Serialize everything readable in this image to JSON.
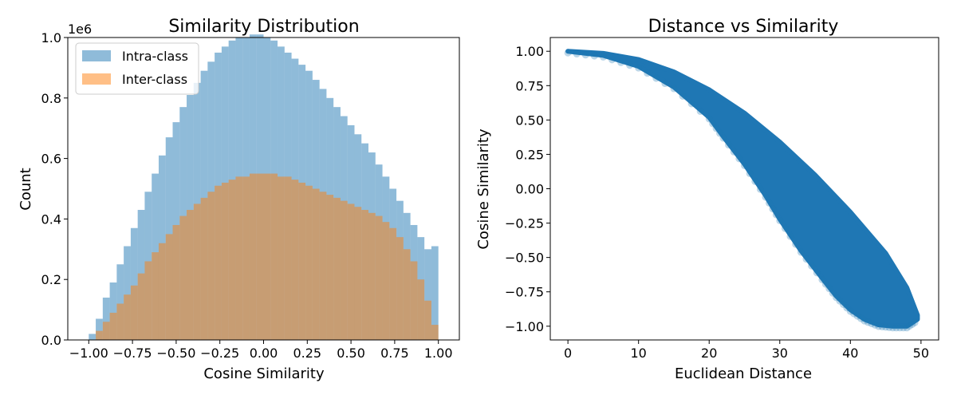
{
  "chart_data": [
    {
      "type": "histogram",
      "title": "Similarity Distribution",
      "xlabel": "Cosine Similarity",
      "ylabel": "Count",
      "y_offset_text": "1e6",
      "xlim": [
        -1.12,
        1.12
      ],
      "ylim": [
        0,
        1.0
      ],
      "xticks": [
        -1.0,
        -0.75,
        -0.5,
        -0.25,
        0.0,
        0.25,
        0.5,
        0.75,
        1.0
      ],
      "xtick_labels": [
        "−1.00",
        "−0.75",
        "−0.50",
        "−0.25",
        "0.00",
        "0.25",
        "0.50",
        "0.75",
        "1.00"
      ],
      "yticks": [
        0.0,
        0.2,
        0.4,
        0.6,
        0.8,
        1.0
      ],
      "ytick_labels": [
        "0.0",
        "0.2",
        "0.4",
        "0.6",
        "0.8",
        "1.0"
      ],
      "y_scale": 1000000,
      "bins": 50,
      "bin_range": [
        -1.0,
        1.0
      ],
      "legend_location": "upper left",
      "grid": false,
      "series": [
        {
          "name": "Intra-class",
          "color": "#1f77b4",
          "alpha": 0.5,
          "values": [
            0.02,
            0.07,
            0.14,
            0.19,
            0.25,
            0.31,
            0.37,
            0.43,
            0.49,
            0.55,
            0.61,
            0.67,
            0.72,
            0.77,
            0.81,
            0.85,
            0.89,
            0.92,
            0.95,
            0.97,
            0.99,
            1.0,
            1.0,
            1.01,
            1.01,
            1.0,
            0.99,
            0.97,
            0.95,
            0.93,
            0.91,
            0.89,
            0.86,
            0.83,
            0.8,
            0.77,
            0.74,
            0.71,
            0.68,
            0.65,
            0.62,
            0.58,
            0.54,
            0.5,
            0.46,
            0.42,
            0.38,
            0.34,
            0.3,
            0.31
          ]
        },
        {
          "name": "Inter-class",
          "color": "#ff7f0e",
          "alpha": 0.5,
          "values": [
            0.0,
            0.03,
            0.06,
            0.09,
            0.12,
            0.15,
            0.18,
            0.22,
            0.26,
            0.29,
            0.32,
            0.35,
            0.38,
            0.41,
            0.43,
            0.45,
            0.47,
            0.49,
            0.51,
            0.52,
            0.53,
            0.54,
            0.54,
            0.55,
            0.55,
            0.55,
            0.55,
            0.54,
            0.54,
            0.53,
            0.52,
            0.51,
            0.5,
            0.49,
            0.48,
            0.47,
            0.46,
            0.45,
            0.44,
            0.43,
            0.42,
            0.41,
            0.39,
            0.37,
            0.34,
            0.3,
            0.26,
            0.2,
            0.13,
            0.05
          ]
        }
      ]
    },
    {
      "type": "scatter",
      "title": "Distance vs Similarity",
      "xlabel": "Euclidean Distance",
      "ylabel": "Cosine Similarity",
      "xlim": [
        -2.5,
        52.5
      ],
      "ylim": [
        -1.1,
        1.1
      ],
      "xticks": [
        0,
        10,
        20,
        30,
        40,
        50
      ],
      "xtick_labels": [
        "0",
        "10",
        "20",
        "30",
        "40",
        "50"
      ],
      "yticks": [
        -1.0,
        -0.75,
        -0.5,
        -0.25,
        0.0,
        0.25,
        0.5,
        0.75,
        1.0
      ],
      "ytick_labels": [
        "−1.00",
        "−0.75",
        "−0.50",
        "−0.25",
        "0.00",
        "0.25",
        "0.50",
        "0.75",
        "1.00"
      ],
      "grid": false,
      "series": [
        {
          "color": "#1f77b4",
          "alpha": 0.3,
          "band_upper_edge": {
            "x": [
              0,
              5,
              10,
              15,
              20,
              25,
              30,
              35,
              40,
              45,
              48,
              49.5
            ],
            "y": [
              1.0,
              0.985,
              0.94,
              0.85,
              0.72,
              0.55,
              0.34,
              0.1,
              -0.17,
              -0.47,
              -0.72,
              -0.92
            ]
          },
          "band_lower_edge": {
            "x": [
              0,
              5,
              10,
              15,
              20,
              22,
              25,
              28,
              30,
              33,
              36,
              38,
              40,
              42,
              44,
              46,
              48,
              49.5
            ],
            "y": [
              1.0,
              0.97,
              0.89,
              0.74,
              0.52,
              0.38,
              0.18,
              -0.05,
              -0.22,
              -0.45,
              -0.65,
              -0.78,
              -0.88,
              -0.95,
              -0.99,
              -1.0,
              -1.0,
              -0.95
            ]
          }
        }
      ]
    }
  ]
}
